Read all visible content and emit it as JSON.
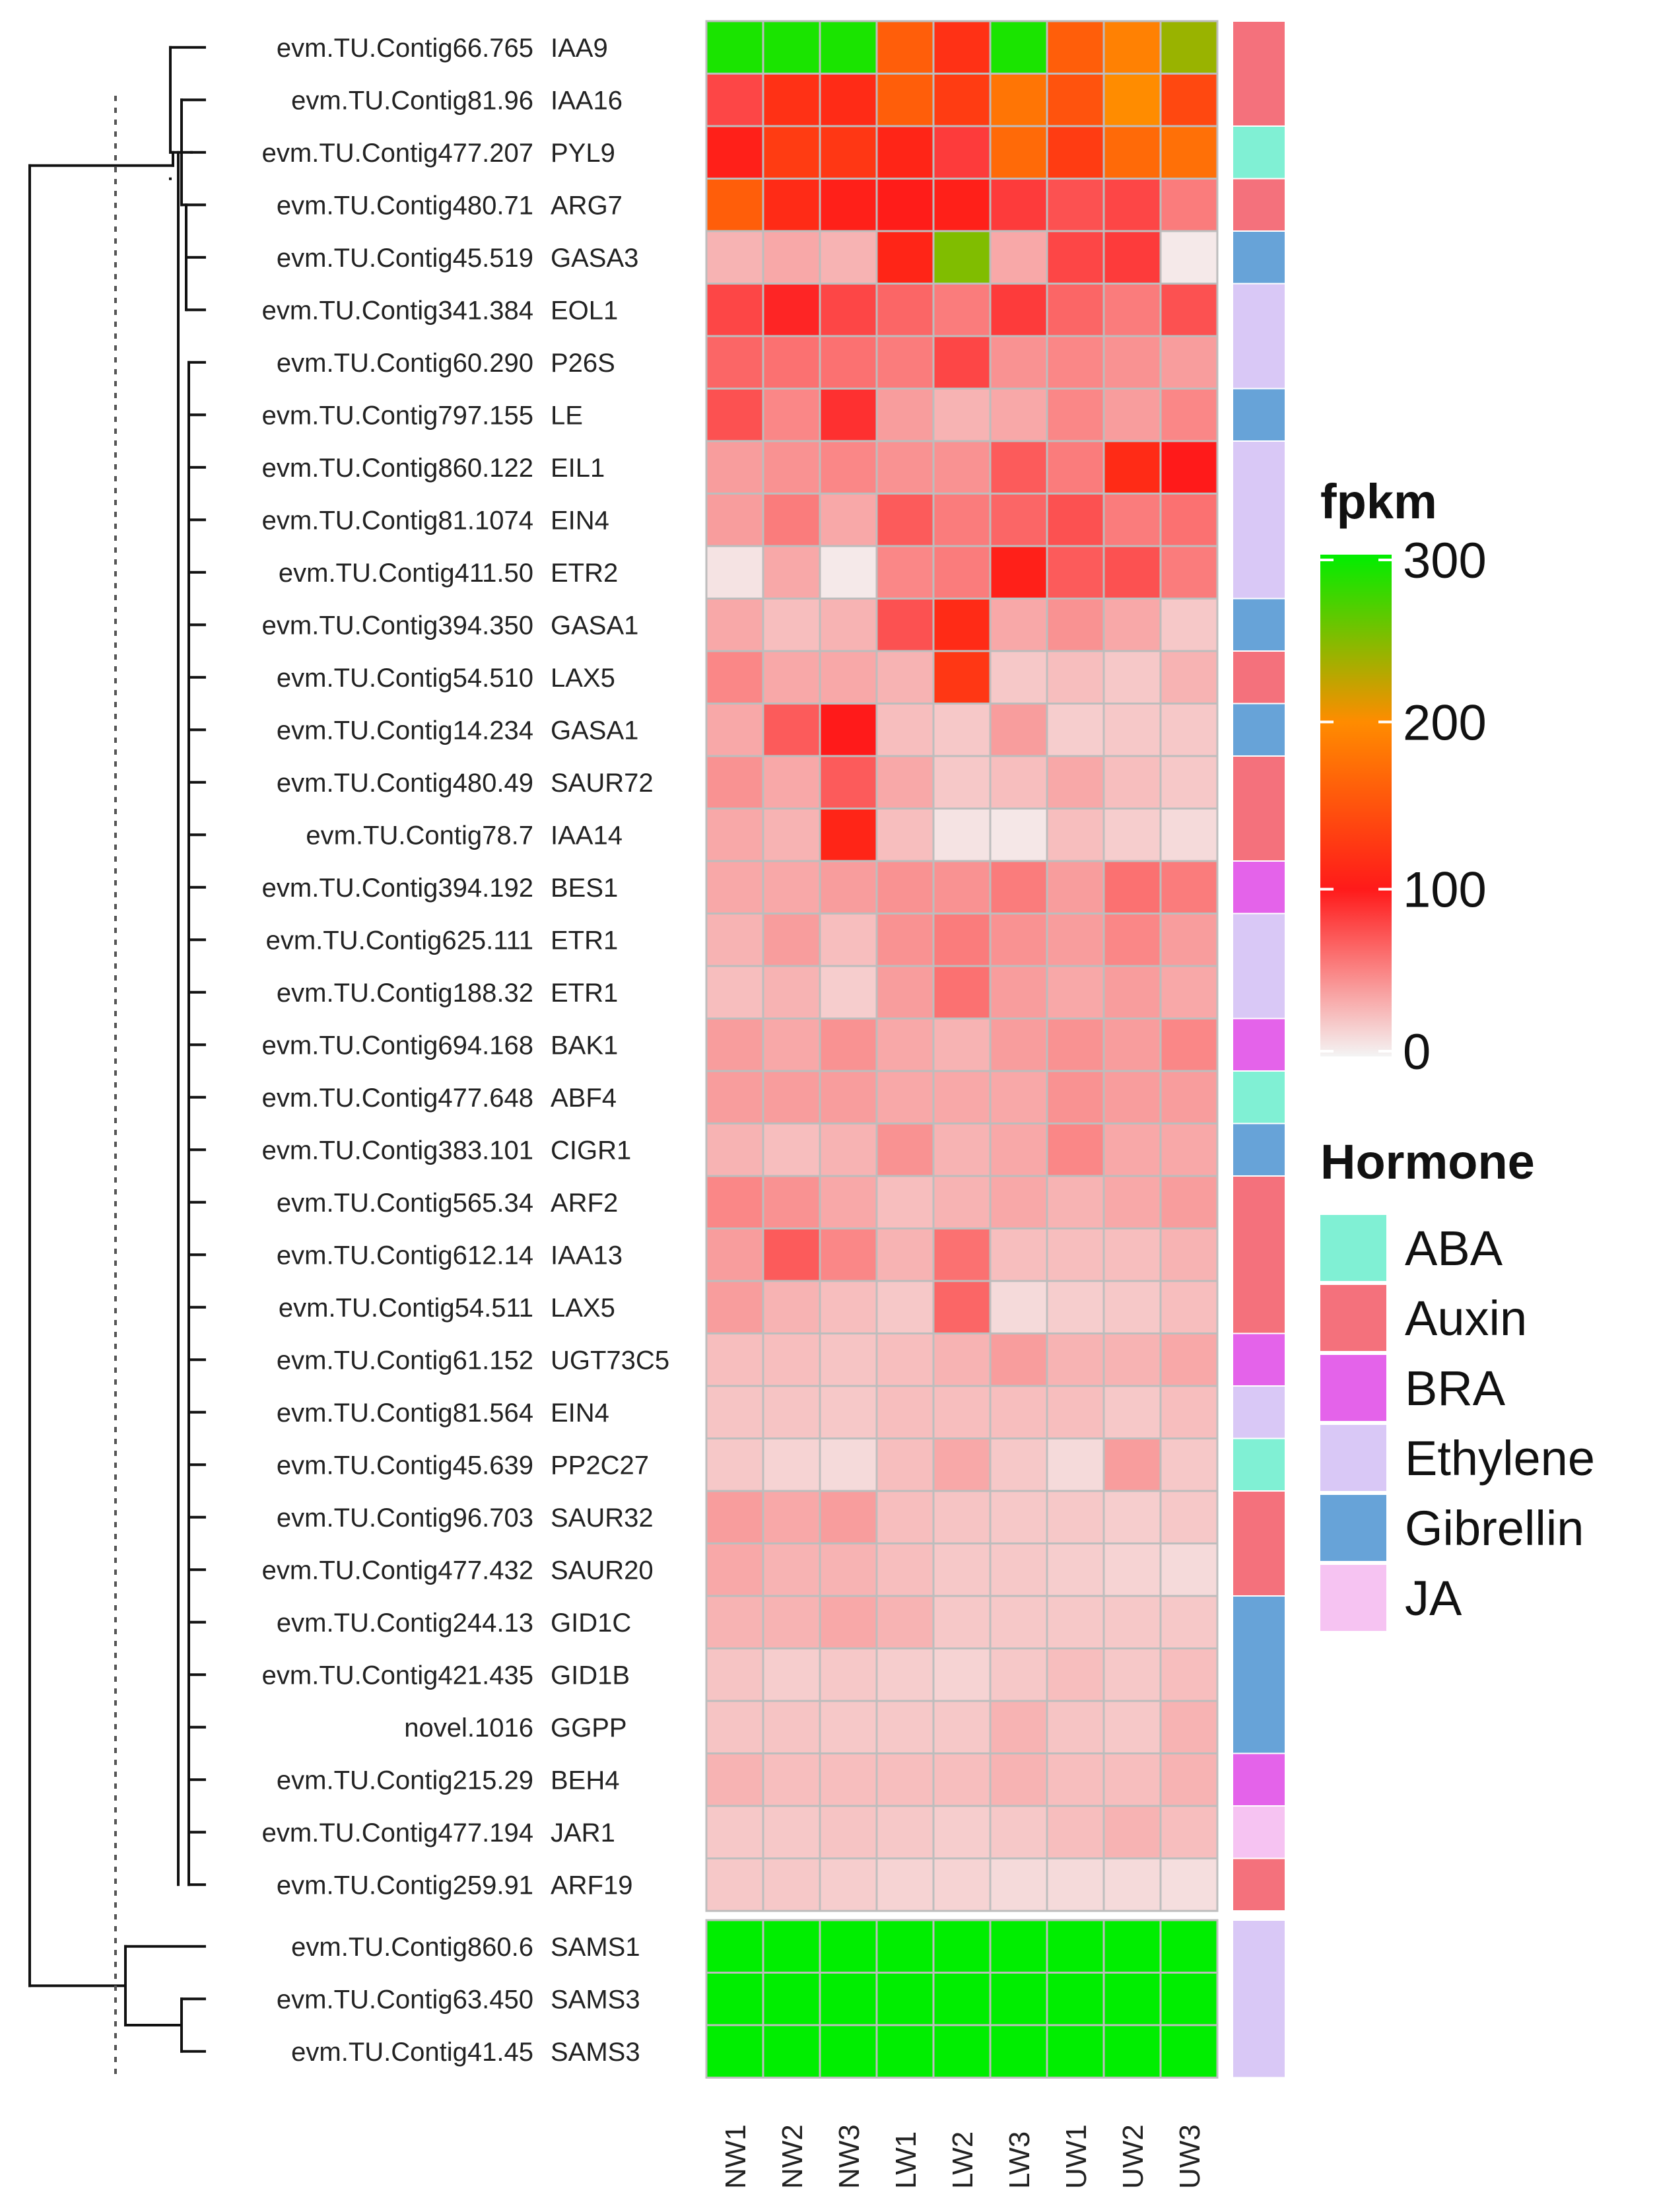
{
  "chart_data": {
    "type": "heatmap",
    "value_scale": {
      "name": "fpkm",
      "min": 0,
      "max": 300,
      "ticks": [
        300,
        200,
        100,
        0
      ]
    },
    "columns": [
      "NW1",
      "NW2",
      "NW3",
      "LW1",
      "LW2",
      "LW3",
      "UW1",
      "UW2",
      "UW3"
    ],
    "rows": [
      {
        "contig": "evm.TU.Contig66.765",
        "gene": "IAA9",
        "hormone": "Auxin",
        "values": [
          290,
          290,
          290,
          160,
          120,
          290,
          160,
          190,
          240
        ]
      },
      {
        "contig": "evm.TU.Contig81.96",
        "gene": "IAA16",
        "hormone": "Auxin",
        "values": [
          80,
          120,
          115,
          160,
          130,
          180,
          150,
          200,
          140
        ]
      },
      {
        "contig": "evm.TU.Contig477.207",
        "gene": "PYL9",
        "hormone": "ABA",
        "values": [
          105,
          130,
          125,
          110,
          85,
          170,
          130,
          170,
          175
        ]
      },
      {
        "contig": "evm.TU.Contig480.71",
        "gene": "ARG7",
        "hormone": "Auxin",
        "values": [
          160,
          115,
          105,
          102,
          105,
          85,
          75,
          80,
          55
        ]
      },
      {
        "contig": "evm.TU.Contig45.519",
        "gene": "GASA3",
        "hormone": "Gibrellin",
        "values": [
          30,
          35,
          30,
          110,
          250,
          35,
          80,
          85,
          5
        ]
      },
      {
        "contig": "evm.TU.Contig341.384",
        "gene": "EOL1",
        "hormone": "Ethylene",
        "values": [
          80,
          95,
          80,
          65,
          55,
          85,
          65,
          55,
          75
        ]
      },
      {
        "contig": "evm.TU.Contig60.290",
        "gene": "P26S",
        "hormone": "Ethylene",
        "values": [
          65,
          60,
          60,
          55,
          80,
          45,
          50,
          45,
          40
        ]
      },
      {
        "contig": "evm.TU.Contig797.155",
        "gene": "LE",
        "hormone": "Gibrellin",
        "values": [
          75,
          50,
          90,
          40,
          30,
          35,
          50,
          40,
          50
        ]
      },
      {
        "contig": "evm.TU.Contig860.122",
        "gene": "EIL1",
        "hormone": "Ethylene",
        "values": [
          40,
          45,
          50,
          45,
          45,
          70,
          55,
          115,
          100
        ]
      },
      {
        "contig": "evm.TU.Contig81.1074",
        "gene": "EIN4",
        "hormone": "Ethylene",
        "values": [
          40,
          55,
          35,
          70,
          55,
          65,
          75,
          55,
          60
        ]
      },
      {
        "contig": "evm.TU.Contig411.50",
        "gene": "ETR2",
        "hormone": "Ethylene",
        "values": [
          8,
          35,
          5,
          50,
          55,
          105,
          70,
          75,
          55
        ]
      },
      {
        "contig": "evm.TU.Contig394.350",
        "gene": "GASA1",
        "hormone": "Gibrellin",
        "values": [
          35,
          25,
          30,
          75,
          115,
          35,
          45,
          35,
          20
        ]
      },
      {
        "contig": "evm.TU.Contig54.510",
        "gene": "LAX5",
        "hormone": "Auxin",
        "values": [
          50,
          35,
          35,
          30,
          125,
          20,
          25,
          20,
          30
        ]
      },
      {
        "contig": "evm.TU.Contig14.234",
        "gene": "GASA1",
        "hormone": "Gibrellin",
        "values": [
          35,
          70,
          100,
          25,
          20,
          40,
          18,
          20,
          20
        ]
      },
      {
        "contig": "evm.TU.Contig480.49",
        "gene": "SAUR72",
        "hormone": "Auxin",
        "values": [
          45,
          35,
          70,
          35,
          20,
          25,
          35,
          25,
          20
        ]
      },
      {
        "contig": "evm.TU.Contig78.7",
        "gene": "IAA14",
        "hormone": "Auxin",
        "values": [
          35,
          30,
          110,
          25,
          8,
          6,
          25,
          18,
          12
        ]
      },
      {
        "contig": "evm.TU.Contig394.192",
        "gene": "BES1",
        "hormone": "BRA",
        "values": [
          35,
          35,
          40,
          45,
          45,
          55,
          40,
          60,
          55
        ]
      },
      {
        "contig": "evm.TU.Contig625.111",
        "gene": "ETR1",
        "hormone": "Ethylene",
        "values": [
          30,
          40,
          25,
          45,
          55,
          45,
          40,
          50,
          40
        ]
      },
      {
        "contig": "evm.TU.Contig188.32",
        "gene": "ETR1",
        "hormone": "Ethylene",
        "values": [
          25,
          30,
          18,
          40,
          60,
          40,
          35,
          40,
          35
        ]
      },
      {
        "contig": "evm.TU.Contig694.168",
        "gene": "BAK1",
        "hormone": "BRA",
        "values": [
          40,
          35,
          45,
          35,
          30,
          40,
          45,
          40,
          50
        ]
      },
      {
        "contig": "evm.TU.Contig477.648",
        "gene": "ABF4",
        "hormone": "ABA",
        "values": [
          40,
          40,
          40,
          35,
          35,
          35,
          45,
          40,
          40
        ]
      },
      {
        "contig": "evm.TU.Contig383.101",
        "gene": "CIGR1",
        "hormone": "Gibrellin",
        "values": [
          30,
          25,
          30,
          45,
          30,
          35,
          50,
          35,
          35
        ]
      },
      {
        "contig": "evm.TU.Contig565.34",
        "gene": "ARF2",
        "hormone": "Auxin",
        "values": [
          50,
          45,
          35,
          25,
          30,
          35,
          30,
          35,
          40
        ]
      },
      {
        "contig": "evm.TU.Contig612.14",
        "gene": "IAA13",
        "hormone": "Auxin",
        "values": [
          40,
          70,
          50,
          30,
          60,
          25,
          25,
          25,
          30
        ]
      },
      {
        "contig": "evm.TU.Contig54.511",
        "gene": "LAX5",
        "hormone": "Auxin",
        "values": [
          40,
          30,
          25,
          20,
          65,
          12,
          18,
          20,
          25
        ]
      },
      {
        "contig": "evm.TU.Contig61.152",
        "gene": "UGT73C5",
        "hormone": "BRA",
        "values": [
          25,
          25,
          22,
          25,
          30,
          40,
          30,
          30,
          35
        ]
      },
      {
        "contig": "evm.TU.Contig81.564",
        "gene": "EIN4",
        "hormone": "Ethylene",
        "values": [
          22,
          22,
          20,
          25,
          25,
          25,
          25,
          20,
          25
        ]
      },
      {
        "contig": "evm.TU.Contig45.639",
        "gene": "PP2C27",
        "hormone": "ABA",
        "values": [
          20,
          15,
          12,
          25,
          35,
          20,
          12,
          40,
          20
        ]
      },
      {
        "contig": "evm.TU.Contig96.703",
        "gene": "SAUR32",
        "hormone": "Auxin",
        "values": [
          40,
          35,
          40,
          25,
          22,
          20,
          20,
          18,
          20
        ]
      },
      {
        "contig": "evm.TU.Contig477.432",
        "gene": "SAUR20",
        "hormone": "Auxin",
        "values": [
          35,
          30,
          30,
          25,
          20,
          20,
          18,
          15,
          12
        ]
      },
      {
        "contig": "evm.TU.Contig244.13",
        "gene": "GID1C",
        "hormone": "Gibrellin",
        "values": [
          30,
          30,
          35,
          30,
          20,
          20,
          20,
          20,
          20
        ]
      },
      {
        "contig": "evm.TU.Contig421.435",
        "gene": "GID1B",
        "hormone": "Gibrellin",
        "values": [
          22,
          18,
          20,
          18,
          15,
          20,
          25,
          20,
          25
        ]
      },
      {
        "contig": "novel.1016",
        "gene": "GGPP",
        "hormone": "Gibrellin",
        "values": [
          22,
          22,
          20,
          20,
          20,
          30,
          22,
          20,
          30
        ]
      },
      {
        "contig": "evm.TU.Contig215.29",
        "gene": "BEH4",
        "hormone": "BRA",
        "values": [
          30,
          25,
          25,
          25,
          25,
          30,
          25,
          25,
          30
        ]
      },
      {
        "contig": "evm.TU.Contig477.194",
        "gene": "JAR1",
        "hormone": "JA",
        "values": [
          20,
          20,
          22,
          20,
          18,
          20,
          25,
          30,
          25
        ]
      },
      {
        "contig": "evm.TU.Contig259.91",
        "gene": "ARF19",
        "hormone": "Auxin",
        "values": [
          20,
          20,
          18,
          15,
          15,
          12,
          12,
          12,
          10
        ]
      },
      {
        "contig": "evm.TU.Contig860.6",
        "gene": "SAMS1",
        "hormone": "Ethylene",
        "values": [
          300,
          300,
          300,
          300,
          300,
          300,
          300,
          300,
          300
        ]
      },
      {
        "contig": "evm.TU.Contig63.450",
        "gene": "SAMS3",
        "hormone": "Ethylene",
        "values": [
          300,
          300,
          300,
          300,
          300,
          300,
          300,
          300,
          300
        ]
      },
      {
        "contig": "evm.TU.Contig41.45",
        "gene": "SAMS3",
        "hormone": "Ethylene",
        "values": [
          300,
          300,
          300,
          300,
          300,
          300,
          300,
          300,
          300
        ]
      }
    ],
    "row_split_after": 36,
    "color_scale": [
      "#f4f4f4",
      "#ff1a1a",
      "#ff8c00",
      "#00ee00"
    ],
    "legend": {
      "title": "fpkm",
      "hormone_title": "Hormone",
      "hormones": [
        {
          "name": "ABA",
          "color": "#80f0d4"
        },
        {
          "name": "Auxin",
          "color": "#f4717c"
        },
        {
          "name": "BRA",
          "color": "#e463ea"
        },
        {
          "name": "Ethylene",
          "color": "#d9c8f6"
        },
        {
          "name": "Gibrellin",
          "color": "#67a3d8"
        },
        {
          "name": "JA",
          "color": "#f6c3f2"
        }
      ]
    },
    "dendrogram": "row dendrogram on the left; three SAMS rows form a separate cluster"
  }
}
